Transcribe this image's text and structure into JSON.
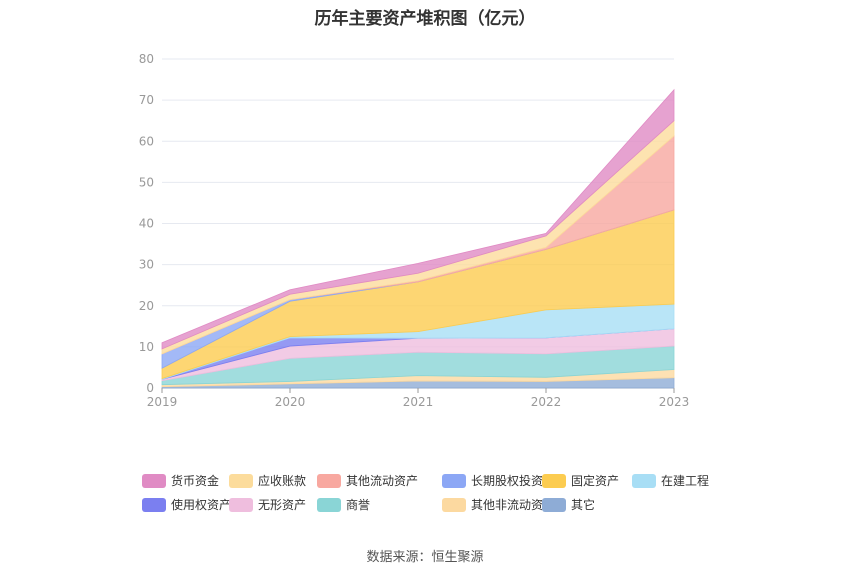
{
  "title": "历年主要资产堆积图（亿元）",
  "source": "数据来源：恒生聚源",
  "chart_data": {
    "type": "area",
    "stacked": true,
    "title": "历年主要资产堆积图（亿元）",
    "xlabel": "",
    "ylabel": "",
    "x": [
      "2019",
      "2020",
      "2021",
      "2022",
      "2023"
    ],
    "ylim": [
      0,
      80
    ],
    "yticks": [
      0,
      10,
      20,
      30,
      40,
      50,
      60,
      70,
      80
    ],
    "grid": true,
    "legend_position": "bottom",
    "series": [
      {
        "name": "其它",
        "color": "#8eacd6",
        "values": [
          0.3,
          1.0,
          1.7,
          1.6,
          2.5
        ]
      },
      {
        "name": "其他非流动资产",
        "color": "#fcd9a0",
        "values": [
          0.5,
          0.6,
          1.3,
          1.0,
          2.0
        ]
      },
      {
        "name": "商誉",
        "color": "#8ad5d6",
        "values": [
          1.0,
          5.6,
          5.7,
          5.7,
          5.7
        ]
      },
      {
        "name": "无形资产",
        "color": "#efbede",
        "values": [
          0.3,
          3.0,
          3.4,
          3.9,
          4.2
        ]
      },
      {
        "name": "使用权资产",
        "color": "#7b7ff0",
        "values": [
          0.0,
          2.0,
          0.0,
          0.0,
          0.0
        ]
      },
      {
        "name": "在建工程",
        "color": "#a8def5",
        "values": [
          0.2,
          0.3,
          1.6,
          6.8,
          6.0
        ]
      },
      {
        "name": "固定资产",
        "color": "#fccc50",
        "values": [
          2.5,
          8.6,
          12.1,
          14.7,
          22.9
        ]
      },
      {
        "name": "长期股权投资",
        "color": "#8ca7f5",
        "values": [
          3.5,
          0.4,
          0.0,
          0.0,
          0.0
        ]
      },
      {
        "name": "其他流动资产",
        "color": "#f8a8a0",
        "values": [
          0.0,
          0.0,
          0.3,
          0.5,
          18.0
        ]
      },
      {
        "name": "应收账款",
        "color": "#fcdc9c",
        "values": [
          1.2,
          1.3,
          1.8,
          2.8,
          3.7
        ]
      },
      {
        "name": "货币资金",
        "color": "#e08bc4",
        "values": [
          1.5,
          1.1,
          2.4,
          0.6,
          7.5
        ]
      }
    ],
    "legend_order": [
      "货币资金",
      "应收账款",
      "其他流动资产",
      "长期股权投资",
      "固定资产",
      "在建工程",
      "使用权资产",
      "无形资产",
      "商誉",
      "其他非流动资产",
      "其它"
    ]
  }
}
